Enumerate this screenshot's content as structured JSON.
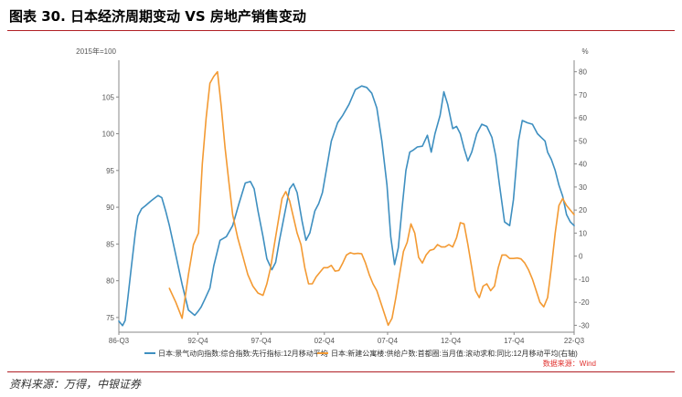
{
  "figure": {
    "title": "图表 30. 日本经济周期变动 VS 房地产销售变动",
    "source": "资料来源：万得，中银证券",
    "data_source_note": "数据来源：Wind"
  },
  "colors": {
    "series_blue": "#3e8fc0",
    "series_orange": "#f39a33",
    "rule_red": "#b01f24",
    "note_red": "#e0312e"
  },
  "chart_data": {
    "type": "line",
    "left_axis_unit": "2015年=100",
    "right_axis_unit": "%",
    "left_ylim": [
      73,
      110
    ],
    "right_ylim": [
      -33,
      85
    ],
    "left_ticks": [
      75,
      80,
      85,
      90,
      95,
      100,
      105
    ],
    "right_ticks": [
      -30,
      -20,
      -10,
      0,
      10,
      20,
      30,
      40,
      50,
      60,
      70,
      80
    ],
    "xlim": [
      1986.5,
      2022.5
    ],
    "x_ticks": [
      {
        "label": "86-Q3",
        "x": 1986.5
      },
      {
        "label": "92-Q4",
        "x": 1992.75
      },
      {
        "label": "97-Q4",
        "x": 1997.75
      },
      {
        "label": "02-Q4",
        "x": 2002.75
      },
      {
        "label": "07-Q4",
        "x": 2007.75
      },
      {
        "label": "12-Q4",
        "x": 2012.75
      },
      {
        "label": "17-Q4",
        "x": 2017.75
      },
      {
        "label": "22-Q3",
        "x": 2022.5
      }
    ],
    "grid": false,
    "legend_position": "bottom",
    "series": [
      {
        "name": "日本:景气动向指数:综合指数:先行指标:12月移动平均",
        "axis": "left",
        "color": "#3e8fc0",
        "x": [
          1986.5,
          1986.8,
          1987.0,
          1987.2,
          1987.5,
          1987.8,
          1988.0,
          1988.3,
          1988.6,
          1989.0,
          1989.3,
          1989.6,
          1989.9,
          1990.2,
          1990.5,
          1991.0,
          1991.5,
          1992.0,
          1992.5,
          1992.8,
          1993.0,
          1993.3,
          1993.7,
          1994.0,
          1994.5,
          1995.0,
          1995.5,
          1996.0,
          1996.5,
          1996.9,
          1997.2,
          1997.5,
          1997.9,
          1998.2,
          1998.6,
          1998.9,
          1999.2,
          1999.6,
          2000.0,
          2000.3,
          2000.6,
          2001.0,
          2001.3,
          2001.6,
          2002.0,
          2002.3,
          2002.6,
          2002.9,
          2003.3,
          2003.8,
          2004.2,
          2004.7,
          2005.2,
          2005.7,
          2006.1,
          2006.5,
          2006.9,
          2007.3,
          2007.7,
          2008.0,
          2008.3,
          2008.6,
          2008.9,
          2009.2,
          2009.5,
          2009.8,
          2010.1,
          2010.5,
          2010.9,
          2011.2,
          2011.5,
          2011.9,
          2012.2,
          2012.5,
          2012.9,
          2013.2,
          2013.5,
          2013.8,
          2014.1,
          2014.4,
          2014.8,
          2015.2,
          2015.6,
          2016.0,
          2016.3,
          2016.6,
          2017.0,
          2017.4,
          2017.7,
          2018.1,
          2018.4,
          2018.8,
          2019.2,
          2019.6,
          2019.9,
          2020.2,
          2020.4,
          2020.7,
          2021.0,
          2021.3,
          2021.6,
          2021.9,
          2022.2,
          2022.5
        ],
        "values": [
          74.5,
          73.9,
          74.6,
          77.5,
          82.0,
          86.5,
          88.8,
          89.8,
          90.2,
          90.8,
          91.2,
          91.6,
          91.3,
          89.5,
          87.5,
          83.5,
          79.5,
          76.0,
          75.3,
          75.9,
          76.4,
          77.5,
          79.0,
          82.0,
          85.5,
          86.0,
          87.5,
          90.5,
          93.3,
          93.5,
          92.5,
          89.5,
          86.0,
          83.0,
          81.5,
          82.5,
          85.5,
          89.0,
          92.5,
          93.2,
          92.0,
          88.0,
          85.5,
          86.5,
          89.5,
          90.5,
          92.0,
          95.0,
          99.0,
          101.5,
          102.5,
          104.0,
          106.0,
          106.5,
          106.3,
          105.5,
          103.5,
          99.0,
          93.0,
          86.0,
          82.2,
          84.5,
          90.0,
          95.0,
          97.5,
          97.8,
          98.2,
          98.3,
          99.8,
          97.5,
          100.0,
          102.5,
          105.7,
          104.0,
          100.7,
          101.0,
          100.0,
          98.0,
          96.3,
          97.5,
          100.0,
          101.3,
          101.0,
          99.5,
          97.0,
          93.0,
          88.0,
          87.5,
          91.0,
          99.0,
          101.8,
          101.5,
          101.3,
          100.0,
          99.5,
          99.0,
          97.5,
          96.5,
          95.0,
          93.0,
          91.5,
          89.0,
          88.0,
          87.5
        ]
      },
      {
        "name": "日本:新建公寓楼:供给户数:首都圈:当月值:滚动求和:同比:12月移动平均(右轴)",
        "axis": "right",
        "color": "#f39a33",
        "x": [
          1990.5,
          1991.0,
          1991.5,
          1992.0,
          1992.4,
          1992.8,
          1993.1,
          1993.4,
          1993.7,
          1994.0,
          1994.3,
          1994.6,
          1994.9,
          1995.2,
          1995.5,
          1995.9,
          1996.3,
          1996.7,
          1997.1,
          1997.5,
          1997.9,
          1998.2,
          1998.5,
          1998.8,
          1999.1,
          1999.4,
          1999.7,
          2000.0,
          2000.3,
          2000.6,
          2000.9,
          2001.2,
          2001.5,
          2001.8,
          2002.1,
          2002.4,
          2002.7,
          2003.0,
          2003.3,
          2003.6,
          2003.9,
          2004.2,
          2004.5,
          2004.8,
          2005.1,
          2005.4,
          2005.7,
          2006.0,
          2006.3,
          2006.6,
          2006.9,
          2007.2,
          2007.5,
          2007.8,
          2008.1,
          2008.4,
          2008.7,
          2009.0,
          2009.3,
          2009.6,
          2009.9,
          2010.2,
          2010.5,
          2010.8,
          2011.1,
          2011.4,
          2011.7,
          2012.0,
          2012.3,
          2012.6,
          2012.9,
          2013.2,
          2013.5,
          2013.8,
          2014.1,
          2014.4,
          2014.7,
          2015.0,
          2015.3,
          2015.6,
          2015.9,
          2016.2,
          2016.5,
          2016.8,
          2017.1,
          2017.4,
          2017.7,
          2018.0,
          2018.3,
          2018.6,
          2018.9,
          2019.2,
          2019.5,
          2019.8,
          2020.1,
          2020.4,
          2020.7,
          2021.0,
          2021.3,
          2021.6,
          2021.9,
          2022.2,
          2022.5
        ],
        "values": [
          -14.0,
          -20.0,
          -27.0,
          -8.0,
          5.0,
          10.0,
          40.0,
          60.0,
          75.0,
          78.0,
          80.0,
          65.0,
          47.0,
          32.0,
          18.0,
          8.0,
          0.0,
          -8.0,
          -13.0,
          -16.0,
          -17.0,
          -12.0,
          -5.0,
          5.0,
          15.0,
          25.0,
          28.0,
          24.0,
          17.0,
          10.0,
          5.0,
          -5.0,
          -12.0,
          -12.0,
          -9.0,
          -7.0,
          -5.0,
          -5.0,
          -4.0,
          -6.5,
          -6.2,
          -3.0,
          0.5,
          1.5,
          1.0,
          1.2,
          1.0,
          -3.0,
          -8.0,
          -12.0,
          -15.0,
          -20.0,
          -25.0,
          -30.0,
          -27.0,
          -18.0,
          -8.0,
          2.0,
          6.0,
          14.0,
          10.0,
          -0.5,
          -3.0,
          0.5,
          2.5,
          3.0,
          5.0,
          4.0,
          4.0,
          5.0,
          4.0,
          8.0,
          14.5,
          14.0,
          5.0,
          -5.0,
          -15.0,
          -18.0,
          -13.0,
          -12.0,
          -15.0,
          -13.0,
          -5.0,
          0.5,
          0.5,
          -1.0,
          -1.0,
          -0.8,
          -1.2,
          -3.0,
          -6.0,
          -10.0,
          -15.0,
          -20.0,
          -22.0,
          -18.0,
          -5.0,
          10.0,
          22.0,
          25.0,
          22.0,
          20.0,
          18.0
        ]
      }
    ]
  }
}
